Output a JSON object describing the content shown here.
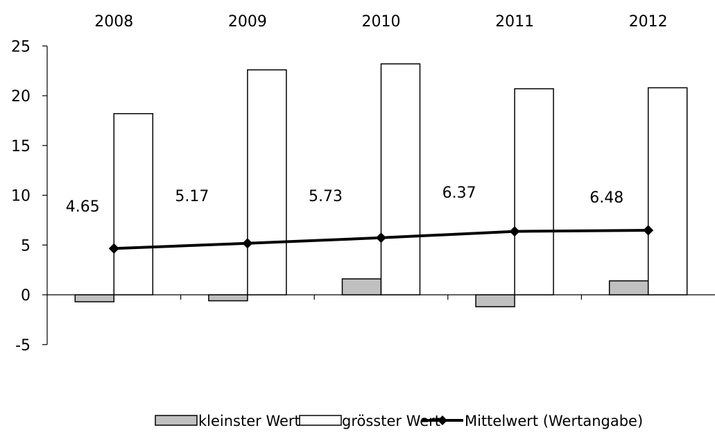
{
  "chart_data": {
    "type": "bar",
    "categories": [
      "2008",
      "2009",
      "2010",
      "2011",
      "2012"
    ],
    "series": [
      {
        "name": "kleinster Wert",
        "type": "bar",
        "color": "#c0c0c0",
        "values": [
          -0.7,
          -0.6,
          1.6,
          -1.2,
          1.4
        ]
      },
      {
        "name": "grösster Wert",
        "type": "bar",
        "color": "#ffffff",
        "values": [
          18.2,
          22.6,
          23.2,
          20.7,
          20.8
        ]
      },
      {
        "name": "Mittelwert (Wertangabe)",
        "type": "line",
        "color": "#000000",
        "marker": "diamond",
        "values": [
          4.65,
          5.17,
          5.73,
          6.37,
          6.48
        ]
      }
    ],
    "data_labels": [
      "4.65",
      "5.17",
      "5.73",
      "6.37",
      "6.48"
    ],
    "ylim": [
      -5,
      25
    ],
    "yticks": [
      25,
      20,
      15,
      10,
      5,
      0,
      -5
    ],
    "xaxis_position": "top",
    "grid": false,
    "legend_position": "bottom",
    "title": "",
    "xlabel": "",
    "ylabel": ""
  }
}
